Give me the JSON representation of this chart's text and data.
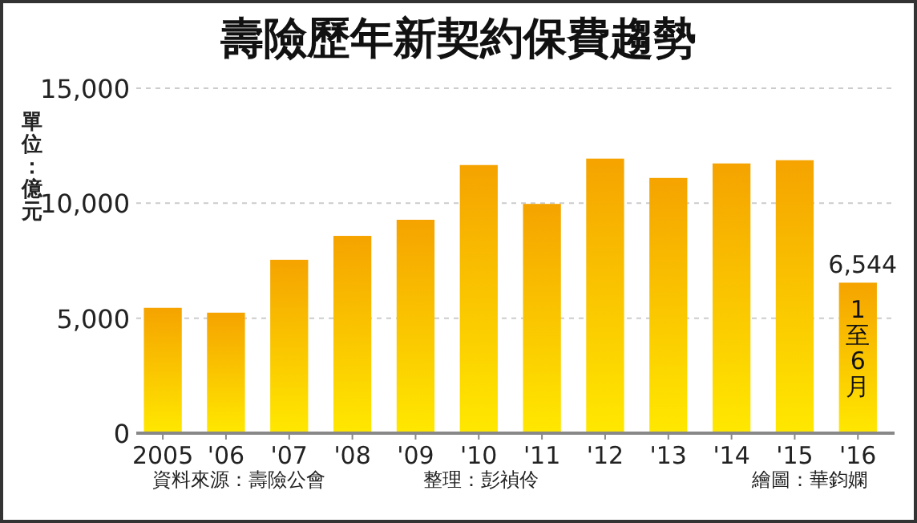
{
  "chart_data": {
    "type": "bar",
    "title": "壽險歷年新契約保費趨勢",
    "ylabel": "單位：億元",
    "categories": [
      "2005",
      "'06",
      "'07",
      "'08",
      "'09",
      "'10",
      "'11",
      "'12",
      "'13",
      "'14",
      "'15",
      "'16"
    ],
    "values": [
      5450,
      5240,
      7540,
      8580,
      9280,
      11660,
      9970,
      11940,
      11100,
      11730,
      11870,
      6544
    ],
    "color": "#f5a300",
    "value_labels": [
      null,
      null,
      null,
      null,
      null,
      null,
      null,
      null,
      null,
      null,
      null,
      "6,544"
    ],
    "ylim": [
      0,
      15000
    ],
    "yticks": [
      {
        "value": 0,
        "label": "0"
      },
      {
        "value": 5000,
        "label": "5,000"
      },
      {
        "value": 10000,
        "label": "10,000"
      },
      {
        "value": 15000,
        "label": "15,000"
      }
    ],
    "grid": "y",
    "annotations": [
      {
        "text": "1至6月",
        "x": "'16",
        "y": 6544
      },
      "資料來源：壽險公會",
      "整理：彭禎伶",
      "繪圖：華鈞嫻"
    ]
  }
}
